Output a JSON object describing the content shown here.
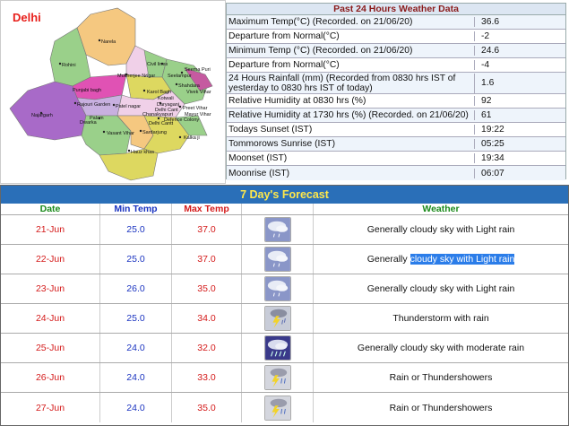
{
  "map": {
    "title": "Delhi",
    "districts": [
      "Narela",
      "Rohini",
      "Mukherjee Nagar",
      "Civil lines",
      "Seema Puri",
      "Seelampur",
      "Shahdara",
      "Vivek Vihar",
      "Preet Vihar",
      "Mayur Vihar",
      "Punjabi bagh",
      "Patel nagar",
      "Karol Bagh",
      "Kotwali",
      "Rajouri Garden",
      "Daryaganj",
      "Najafgarh",
      "Delhi Cant",
      "Chanakyapuri",
      "Delhi Cantt",
      "Defence Colony",
      "Vasant Vihar",
      "Sardarjung",
      "Kalka ji",
      "Hauz khas",
      "Dwarka",
      "Palam"
    ]
  },
  "weather24": {
    "title": "Past 24 Hours Weather Data",
    "rows": [
      {
        "label": "Maximum Temp(°C) (Recorded. on 21/06/20)",
        "value": "36.6"
      },
      {
        "label": "Departure from Normal(°C)",
        "value": "-2"
      },
      {
        "label": "Minimum Temp (°C) (Recorded. on 21/06/20)",
        "value": "24.6"
      },
      {
        "label": "Departure from Normal(°C)",
        "value": "-4"
      },
      {
        "label": "24 Hours Rainfall (mm) (Recorded from 0830 hrs IST of yesterday to 0830 hrs IST of today)",
        "value": "1.6"
      },
      {
        "label": "Relative Humidity at 0830 hrs (%)",
        "value": "92"
      },
      {
        "label": "Relative Humidity at 1730 hrs (%) (Recorded. on 21/06/20)",
        "value": "61"
      },
      {
        "label": "Todays Sunset (IST)",
        "value": "19:22"
      },
      {
        "label": "Tommorows Sunrise (IST)",
        "value": "05:25"
      },
      {
        "label": "Moonset (IST)",
        "value": "19:34"
      },
      {
        "label": "Moonrise (IST)",
        "value": "06:07"
      }
    ]
  },
  "forecast": {
    "title": "7 Day's Forecast",
    "headers": {
      "date": "Date",
      "min": "Min Temp",
      "max": "Max Temp",
      "weather": "Weather"
    },
    "rows": [
      {
        "date": "21-Jun",
        "min": "25.0",
        "max": "37.0",
        "icon": "cloudy-light-rain-icon",
        "weather": "Generally cloudy sky with Light rain"
      },
      {
        "date": "22-Jun",
        "min": "25.0",
        "max": "37.0",
        "icon": "cloudy-light-rain-icon",
        "weather_pre": "Generally ",
        "weather_sel": "cloudy sky with Light rain"
      },
      {
        "date": "23-Jun",
        "min": "26.0",
        "max": "35.0",
        "icon": "cloudy-light-rain-icon",
        "weather": "Generally cloudy sky with Light rain"
      },
      {
        "date": "24-Jun",
        "min": "25.0",
        "max": "34.0",
        "icon": "thunderstorm-icon",
        "weather": "Thunderstorm with rain"
      },
      {
        "date": "25-Jun",
        "min": "24.0",
        "max": "32.0",
        "icon": "moderate-rain-icon",
        "weather": "Generally cloudy sky with moderate rain"
      },
      {
        "date": "26-Jun",
        "min": "24.0",
        "max": "33.0",
        "icon": "thundershowers-icon",
        "weather": "Rain or Thundershowers"
      },
      {
        "date": "27-Jun",
        "min": "24.0",
        "max": "35.0",
        "icon": "thundershowers-icon",
        "weather": "Rain or Thundershowers"
      }
    ]
  },
  "colors": {
    "header_bar": "#2a6fb8",
    "header_text": "#ffe84a",
    "selection": "#2b7de9"
  }
}
